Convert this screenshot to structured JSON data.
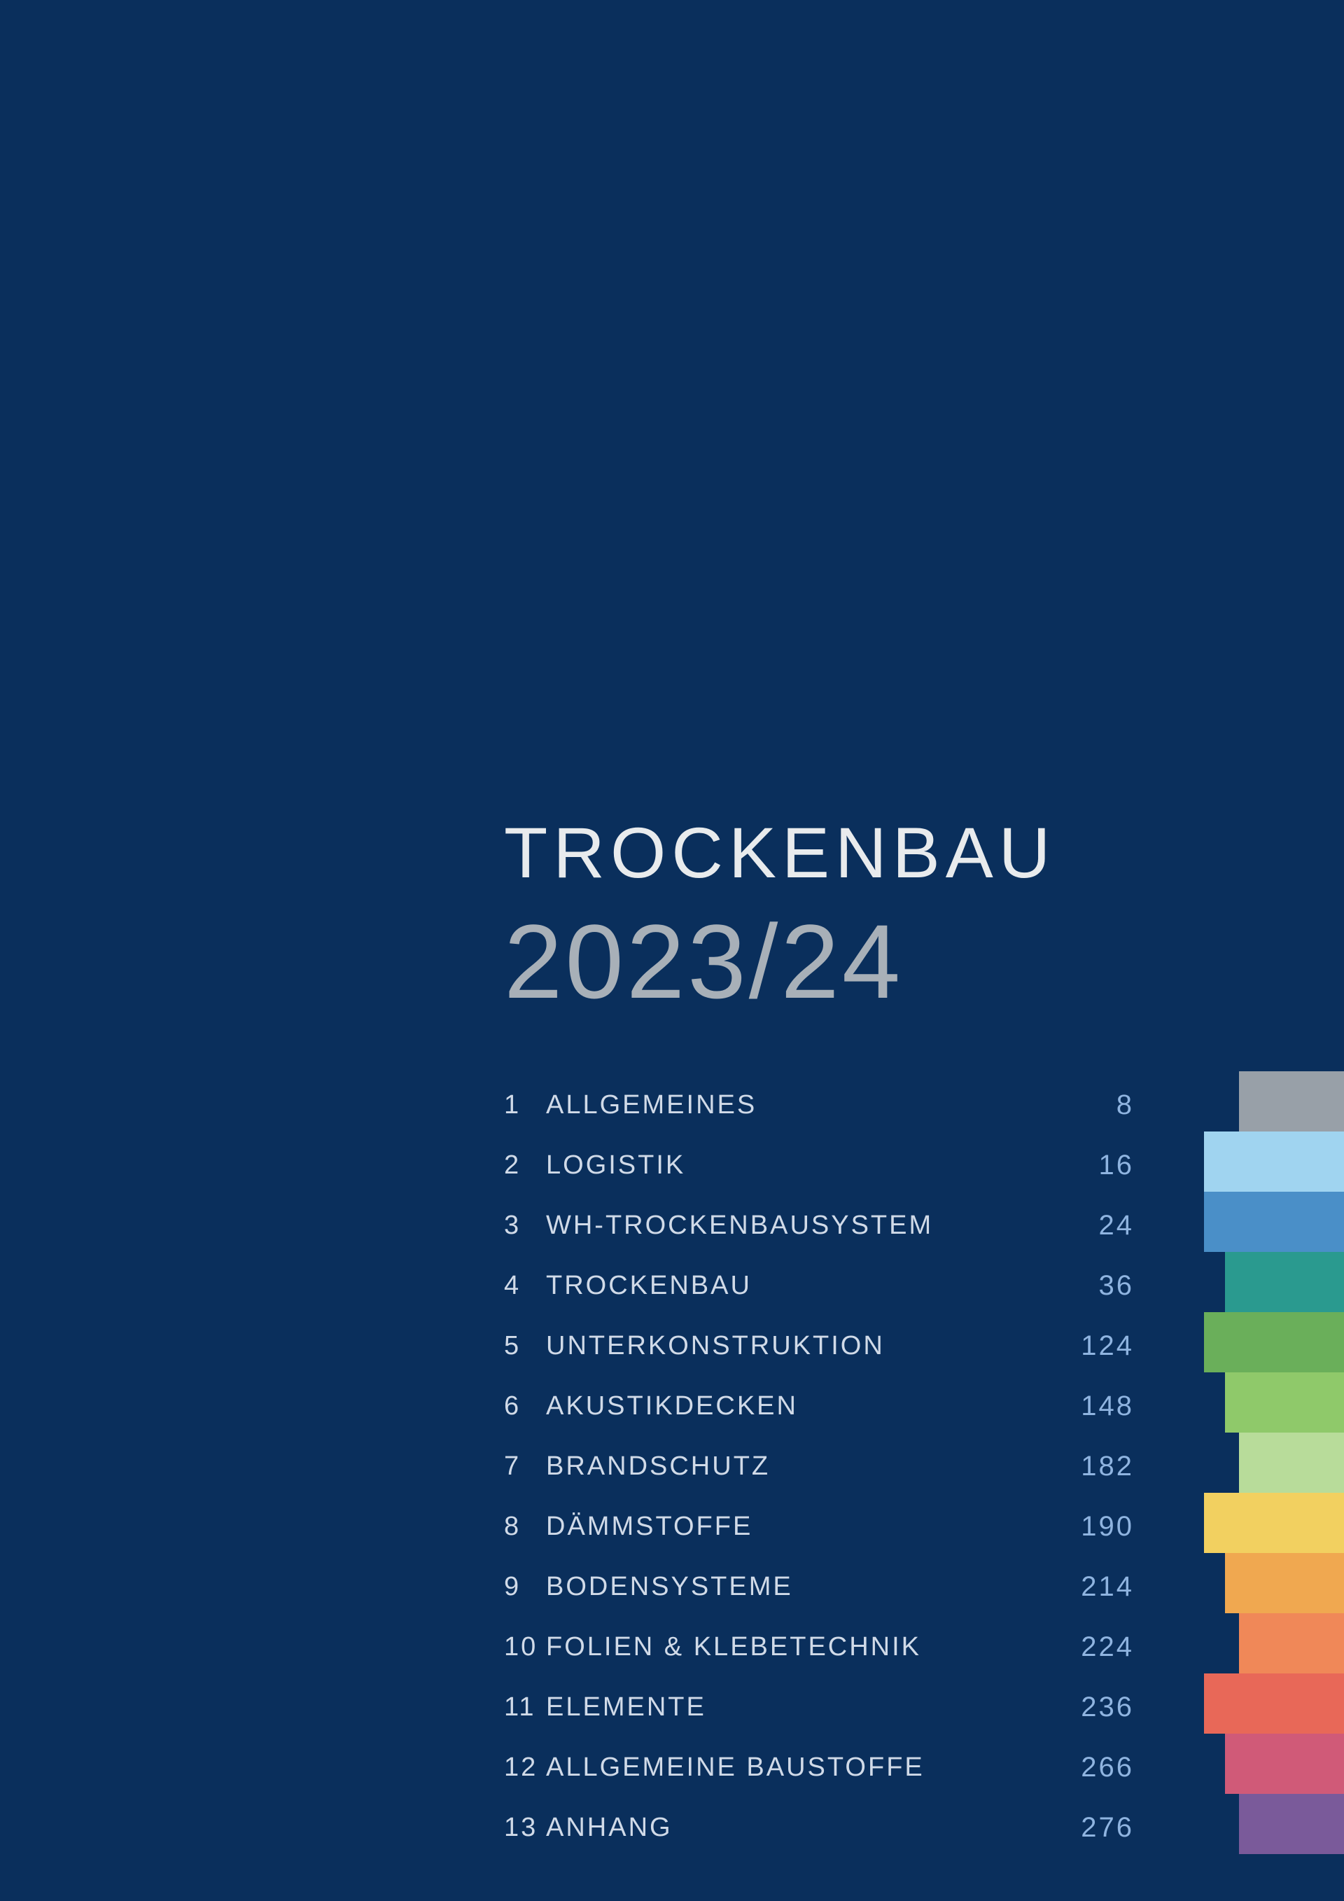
{
  "header": {
    "title": "TROCKENBAU",
    "year": "2023/24",
    "title_fontsize": 102,
    "year_fontsize": 150
  },
  "background_color": "#0a2f5c",
  "text_color": "#d0dae8",
  "page_number_color": "#8fb4e0",
  "year_color": "#a8b0b8",
  "toc_fontsize": 38,
  "toc_row_height": 86,
  "toc": [
    {
      "num": "1",
      "label": "ALLGEMEINES",
      "page": "8",
      "tab_color": "#98a0a8",
      "tab_width": "short"
    },
    {
      "num": "2",
      "label": "LOGISTIK",
      "page": "16",
      "tab_color": "#a0d4f0",
      "tab_width": "full"
    },
    {
      "num": "3",
      "label": "WH-TROCKENBAUSYSTEM",
      "page": "24",
      "tab_color": "#4a8fc8",
      "tab_width": "full"
    },
    {
      "num": "4",
      "label": "TROCKENBAU",
      "page": "36",
      "tab_color": "#2a9a8f",
      "tab_width": "mid"
    },
    {
      "num": "5",
      "label": "UNTERKONSTRUKTION",
      "page": "124",
      "tab_color": "#6aaf5a",
      "tab_width": "full"
    },
    {
      "num": "6",
      "label": "AKUSTIKDECKEN",
      "page": "148",
      "tab_color": "#8fc96a",
      "tab_width": "mid"
    },
    {
      "num": "7",
      "label": "BRANDSCHUTZ",
      "page": "182",
      "tab_color": "#b8dc9a",
      "tab_width": "short"
    },
    {
      "num": "8",
      "label": "DÄMMSTOFFE",
      "page": "190",
      "tab_color": "#f2d060",
      "tab_width": "full"
    },
    {
      "num": "9",
      "label": "BODENSYSTEME",
      "page": "214",
      "tab_color": "#f0a850",
      "tab_width": "mid"
    },
    {
      "num": "10",
      "label": "FOLIEN & KLEBETECHNIK",
      "page": "224",
      "tab_color": "#f08858",
      "tab_width": "short"
    },
    {
      "num": "11",
      "label": "ELEMENTE",
      "page": "236",
      "tab_color": "#e86858",
      "tab_width": "full"
    },
    {
      "num": "12",
      "label": "ALLGEMEINE BAUSTOFFE",
      "page": "266",
      "tab_color": "#d05a78",
      "tab_width": "mid"
    },
    {
      "num": "13",
      "label": "ANHANG",
      "page": "276",
      "tab_color": "#7a5a9a",
      "tab_width": "short"
    }
  ]
}
